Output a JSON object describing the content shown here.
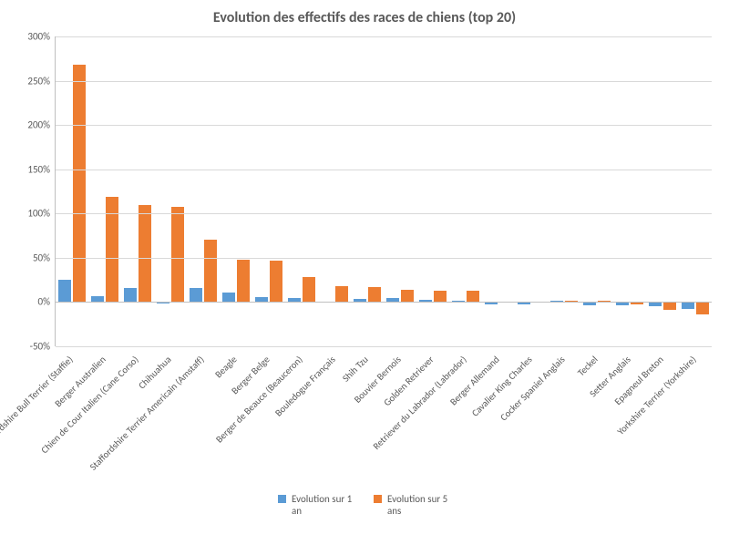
{
  "chart": {
    "type": "bar",
    "title": "Evolution des effectifs des races de chiens (top 20)",
    "title_fontsize": 16,
    "title_color": "#595959",
    "background_color": "#ffffff",
    "grid_color": "#d9d9d9",
    "axis_color": "#bfbfbf",
    "label_color": "#595959",
    "label_fontsize": 11,
    "category_label_fontsize": 10.5,
    "category_label_rotation": -45,
    "bar_group_width_ratio": 0.84,
    "ylim_min": -50,
    "ylim_max": 300,
    "ytick_step": 50,
    "ytick_format": "percent",
    "series": [
      {
        "name": "Evolution sur 1 an",
        "color": "#5b9bd5"
      },
      {
        "name": "Evolution sur 5 ans",
        "color": "#ed7d31"
      }
    ],
    "categories": [
      "Staffordshire Bull Terrier (Staffie)",
      "Berger Australien",
      "Chien de Cour Italien (Cane Corso)",
      "Chihuahua",
      "Staffordshire Terrier Americain (Amstaff)",
      "Beagle",
      "Berger Belge",
      "Berger de Beauce (Beauceron)",
      "Bouledogue Français",
      "Shih Tzu",
      "Bouvier Bernois",
      "Golden Retriever",
      "Retriever du Labrador (Labrador)",
      "Berger Allemand",
      "Cavalier King Charles",
      "Cocker Spaniel Anglais",
      "Teckel",
      "Setter Anglais",
      "Epagneul Breton",
      "Yorkshire Terrier (Yorkshire)"
    ],
    "values_series1": [
      25,
      7,
      16,
      -2,
      16,
      11,
      6,
      5,
      0.5,
      4,
      5,
      3,
      2,
      -3,
      -3,
      2,
      -4,
      -4,
      -5,
      -8
    ],
    "values_series2": [
      268,
      119,
      110,
      108,
      70,
      48,
      47,
      28,
      18,
      17,
      14,
      13,
      13,
      -1,
      -1,
      2,
      2,
      -3,
      -9,
      -14
    ]
  }
}
